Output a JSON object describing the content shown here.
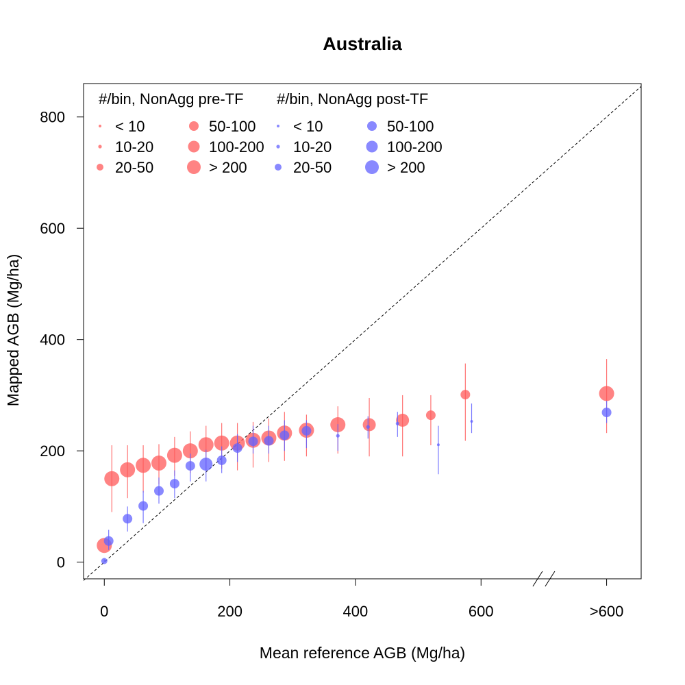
{
  "chart_data": {
    "type": "scatter",
    "title": "Australia",
    "xlabel": "Mean reference AGB (Mg/ha)",
    "ylabel": "Mapped AGB (Mg/ha)",
    "xlim": [
      -33,
      855
    ],
    "ylim": [
      -30,
      860
    ],
    "x_ticks": [
      {
        "value": 0,
        "label": "0"
      },
      {
        "value": 200,
        "label": "200"
      },
      {
        "value": 400,
        "label": "400"
      },
      {
        "value": 600,
        "label": "600"
      },
      {
        "value": 800,
        "label": ">600"
      }
    ],
    "y_ticks": [
      {
        "value": 0,
        "label": "0"
      },
      {
        "value": 200,
        "label": "200"
      },
      {
        "value": 400,
        "label": "400"
      },
      {
        "value": 600,
        "label": "600"
      },
      {
        "value": 800,
        "label": "800"
      }
    ],
    "axis_break": "between 600 and >600 on x-axis",
    "reference_line": "1:1 dashed",
    "grid": false,
    "legend": {
      "placement": "top-left",
      "groups": [
        {
          "title": "#/bin, NonAgg pre-TF",
          "color": "#ff5a5a",
          "entries": [
            "< 10",
            "10-20",
            "20-50",
            "50-100",
            "100-200",
            "> 200"
          ]
        },
        {
          "title": "#/bin, NonAgg post-TF",
          "color": "#6262ff",
          "entries": [
            "< 10",
            "10-20",
            "20-50",
            "50-100",
            "100-200",
            "> 200"
          ]
        }
      ]
    },
    "size_classes": [
      "< 10",
      "10-20",
      "20-50",
      "50-100",
      "100-200",
      "> 200"
    ],
    "series": [
      {
        "name": "#/bin, NonAgg pre-TF",
        "color": "#ff5a5a",
        "points": [
          {
            "x": 0,
            "y": 30,
            "low": 30,
            "high": 30,
            "size_class": 5
          },
          {
            "x": 12,
            "y": 150,
            "low": 90,
            "high": 210,
            "size_class": 5
          },
          {
            "x": 37,
            "y": 166,
            "low": 115,
            "high": 210,
            "size_class": 5
          },
          {
            "x": 62,
            "y": 174,
            "low": 125,
            "high": 210,
            "size_class": 5
          },
          {
            "x": 87,
            "y": 178,
            "low": 140,
            "high": 212,
            "size_class": 5
          },
          {
            "x": 112,
            "y": 192,
            "low": 155,
            "high": 225,
            "size_class": 5
          },
          {
            "x": 137,
            "y": 200,
            "low": 160,
            "high": 235,
            "size_class": 5
          },
          {
            "x": 162,
            "y": 211,
            "low": 165,
            "high": 245,
            "size_class": 5
          },
          {
            "x": 187,
            "y": 214,
            "low": 168,
            "high": 250,
            "size_class": 5
          },
          {
            "x": 212,
            "y": 214,
            "low": 165,
            "high": 250,
            "size_class": 5
          },
          {
            "x": 237,
            "y": 219,
            "low": 170,
            "high": 252,
            "size_class": 5
          },
          {
            "x": 262,
            "y": 223,
            "low": 180,
            "high": 258,
            "size_class": 5
          },
          {
            "x": 287,
            "y": 232,
            "low": 182,
            "high": 270,
            "size_class": 5
          },
          {
            "x": 322,
            "y": 237,
            "low": 190,
            "high": 265,
            "size_class": 5
          },
          {
            "x": 372,
            "y": 247,
            "low": 195,
            "high": 280,
            "size_class": 5
          },
          {
            "x": 422,
            "y": 247,
            "low": 190,
            "high": 295,
            "size_class": 4
          },
          {
            "x": 475,
            "y": 255,
            "low": 190,
            "high": 300,
            "size_class": 4
          },
          {
            "x": 520,
            "y": 264,
            "low": 210,
            "high": 300,
            "size_class": 3
          },
          {
            "x": 575,
            "y": 301,
            "low": 218,
            "high": 357,
            "size_class": 3
          },
          {
            "x": 800,
            "y": 303,
            "low": 232,
            "high": 365,
            "size_class": 5
          }
        ]
      },
      {
        "name": "#/bin, NonAgg post-TF",
        "color": "#6262ff",
        "points": [
          {
            "x": 0,
            "y": 2,
            "low": 0,
            "high": 5,
            "size_class": 2
          },
          {
            "x": 7,
            "y": 38,
            "low": 22,
            "high": 58,
            "size_class": 3
          },
          {
            "x": 37,
            "y": 78,
            "low": 55,
            "high": 100,
            "size_class": 3
          },
          {
            "x": 62,
            "y": 101,
            "low": 70,
            "high": 128,
            "size_class": 3
          },
          {
            "x": 87,
            "y": 128,
            "low": 105,
            "high": 152,
            "size_class": 3
          },
          {
            "x": 112,
            "y": 141,
            "low": 115,
            "high": 165,
            "size_class": 3
          },
          {
            "x": 137,
            "y": 173,
            "low": 145,
            "high": 195,
            "size_class": 3
          },
          {
            "x": 162,
            "y": 176,
            "low": 145,
            "high": 202,
            "size_class": 4
          },
          {
            "x": 187,
            "y": 183,
            "low": 160,
            "high": 208,
            "size_class": 3
          },
          {
            "x": 212,
            "y": 205,
            "low": 180,
            "high": 230,
            "size_class": 3
          },
          {
            "x": 237,
            "y": 217,
            "low": 195,
            "high": 245,
            "size_class": 3
          },
          {
            "x": 262,
            "y": 218,
            "low": 195,
            "high": 245,
            "size_class": 3
          },
          {
            "x": 287,
            "y": 228,
            "low": 200,
            "high": 255,
            "size_class": 3
          },
          {
            "x": 322,
            "y": 236,
            "low": 205,
            "high": 255,
            "size_class": 3
          },
          {
            "x": 372,
            "y": 227,
            "low": 200,
            "high": 248,
            "size_class": 1
          },
          {
            "x": 420,
            "y": 243,
            "low": 222,
            "high": 262,
            "size_class": 1
          },
          {
            "x": 467,
            "y": 249,
            "low": 225,
            "high": 270,
            "size_class": 1
          },
          {
            "x": 532,
            "y": 211,
            "low": 158,
            "high": 245,
            "size_class": 0
          },
          {
            "x": 585,
            "y": 253,
            "low": 232,
            "high": 285,
            "size_class": 0
          },
          {
            "x": 800,
            "y": 269,
            "low": 250,
            "high": 290,
            "size_class": 3
          }
        ]
      }
    ]
  }
}
